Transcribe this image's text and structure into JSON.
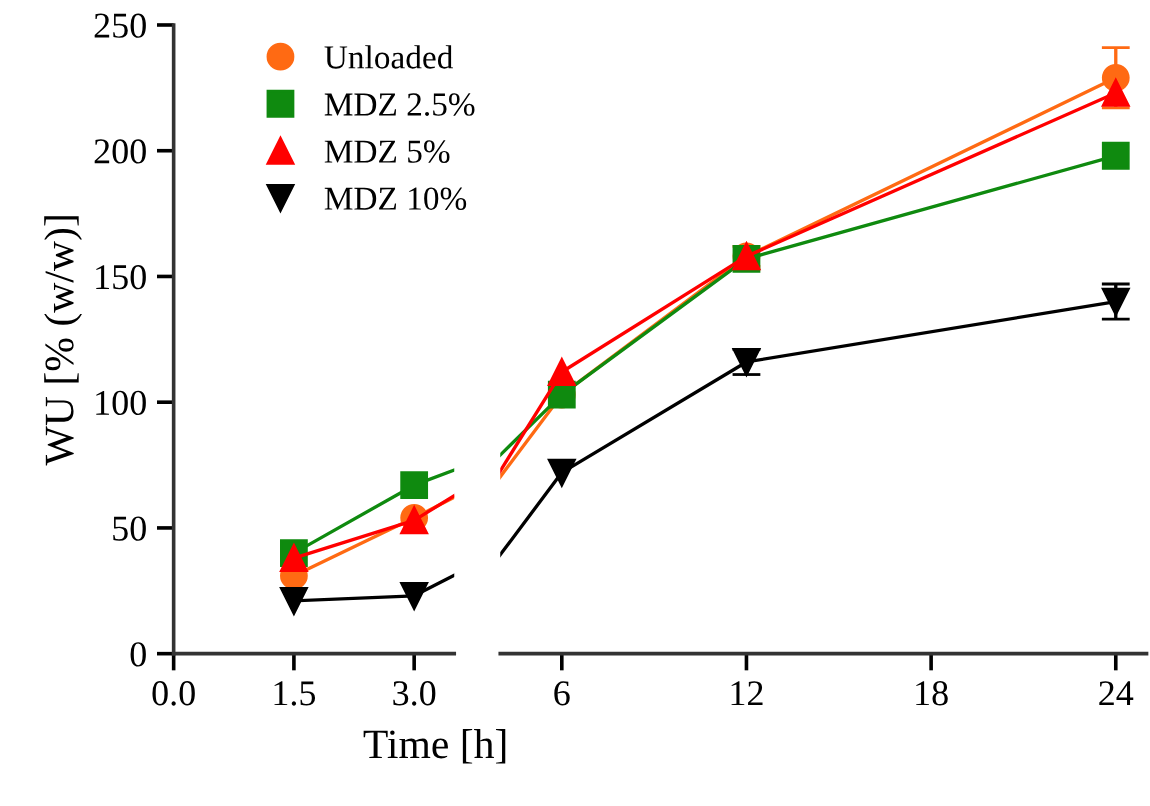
{
  "chart_data": [
    {
      "type": "line",
      "ylabel": "WU [% (w/w)]",
      "x": [
        1.5,
        3
      ],
      "xlim": [
        0,
        3.5
      ],
      "xticks": [
        {
          "value": 0,
          "label": "0.0"
        },
        1.5,
        {
          "value": 3,
          "label": "3.0"
        }
      ],
      "ylim": [
        0,
        250
      ],
      "yticks": [
        0,
        50,
        100,
        150,
        200,
        250
      ],
      "legend": "top right",
      "grid": false,
      "series": [
        {
          "name": "Unloaded",
          "color": "#ff6a13",
          "marker": "circle",
          "values": [
            31,
            54
          ]
        },
        {
          "name": "MDZ 2.5%",
          "color": "#0f8a0f",
          "marker": "square",
          "values": [
            40,
            67
          ]
        },
        {
          "name": "MDZ 5%",
          "color": "#ff0000",
          "marker": "triangle",
          "values": [
            38,
            53
          ]
        },
        {
          "name": "MDZ 10%",
          "color": "#000000",
          "marker": "triangle_down",
          "values": [
            21,
            23
          ]
        }
      ]
    },
    {
      "type": "line",
      "xlabel": "Time [h]",
      "x": [
        6,
        12,
        24
      ],
      "xlim": [
        4,
        25
      ],
      "xticks": [
        6,
        12,
        18,
        24
      ],
      "ylim": [
        0,
        250
      ],
      "tick_labels": "x",
      "grid": false,
      "series": [
        {
          "color": "#ff6a13",
          "marker": "circle",
          "values": [
            103,
            158,
            229
          ],
          "errors": [
            null,
            4,
            12
          ]
        },
        {
          "color": "#0f8a0f",
          "marker": "square",
          "values": [
            103,
            157,
            198
          ]
        },
        {
          "color": "#ff0000",
          "marker": "triangle",
          "values": [
            112,
            158,
            223
          ]
        },
        {
          "color": "#000000",
          "marker": "triangle_down",
          "values": [
            72,
            116,
            140
          ],
          "errors": [
            null,
            5,
            7
          ]
        }
      ]
    }
  ]
}
